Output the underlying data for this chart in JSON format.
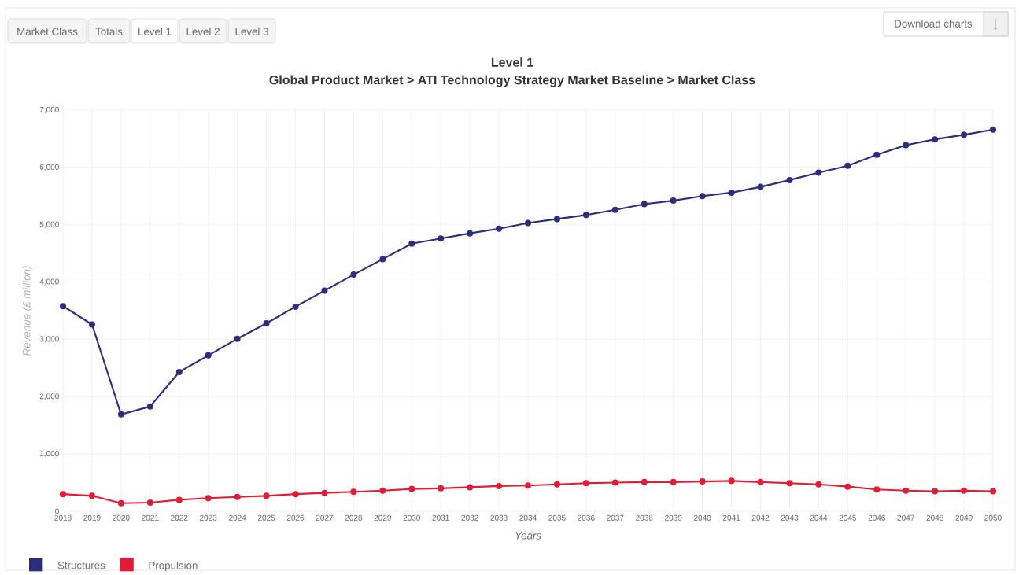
{
  "chart_data": {
    "type": "line",
    "title": "Level 1",
    "subtitle": "Global Product Market > ATI Technology Strategy Market Baseline > Market Class",
    "xlabel": "Years",
    "ylabel": "Revenue (£ million)",
    "categories": [
      "2018",
      "2019",
      "2020",
      "2021",
      "2022",
      "2023",
      "2024",
      "2025",
      "2026",
      "2027",
      "2028",
      "2029",
      "2030",
      "2031",
      "2032",
      "2033",
      "2034",
      "2035",
      "2036",
      "2037",
      "2038",
      "2039",
      "2040",
      "2041",
      "2042",
      "2043",
      "2044",
      "2045",
      "2046",
      "2047",
      "2048",
      "2049",
      "2050"
    ],
    "series": [
      {
        "name": "Structures",
        "color": "#2e2d7a",
        "values": [
          3580,
          3260,
          1690,
          1830,
          2430,
          2720,
          3010,
          3280,
          3570,
          3850,
          4130,
          4400,
          4670,
          4760,
          4850,
          4930,
          5030,
          5100,
          5170,
          5260,
          5360,
          5420,
          5500,
          5560,
          5660,
          5780,
          5910,
          6030,
          6220,
          6390,
          6490,
          6570,
          6660
        ]
      },
      {
        "name": "Propulsion",
        "color": "#e31b37",
        "values": [
          300,
          270,
          140,
          150,
          200,
          230,
          250,
          270,
          300,
          320,
          340,
          360,
          390,
          400,
          420,
          440,
          450,
          470,
          490,
          500,
          510,
          510,
          520,
          530,
          510,
          490,
          470,
          430,
          380,
          360,
          350,
          360,
          350
        ]
      }
    ],
    "ylim": [
      0,
      7000
    ],
    "yticks": [
      {
        "value": 0,
        "label": "0"
      },
      {
        "value": 1000,
        "label": "1,000"
      },
      {
        "value": 2000,
        "label": "2,000"
      },
      {
        "value": 3000,
        "label": "3,000"
      },
      {
        "value": 4000,
        "label": "4,000"
      },
      {
        "value": 5000,
        "label": "5,000"
      },
      {
        "value": 6000,
        "label": "6,000"
      },
      {
        "value": 7000,
        "label": "7,000"
      }
    ],
    "grid": true,
    "legend": "bottom left",
    "marker": "circle",
    "line_style": "solid",
    "annotations": [
      "Market Class",
      "Totals",
      "Level 1",
      "Level 2",
      "Level 3",
      "Download charts"
    ]
  }
}
